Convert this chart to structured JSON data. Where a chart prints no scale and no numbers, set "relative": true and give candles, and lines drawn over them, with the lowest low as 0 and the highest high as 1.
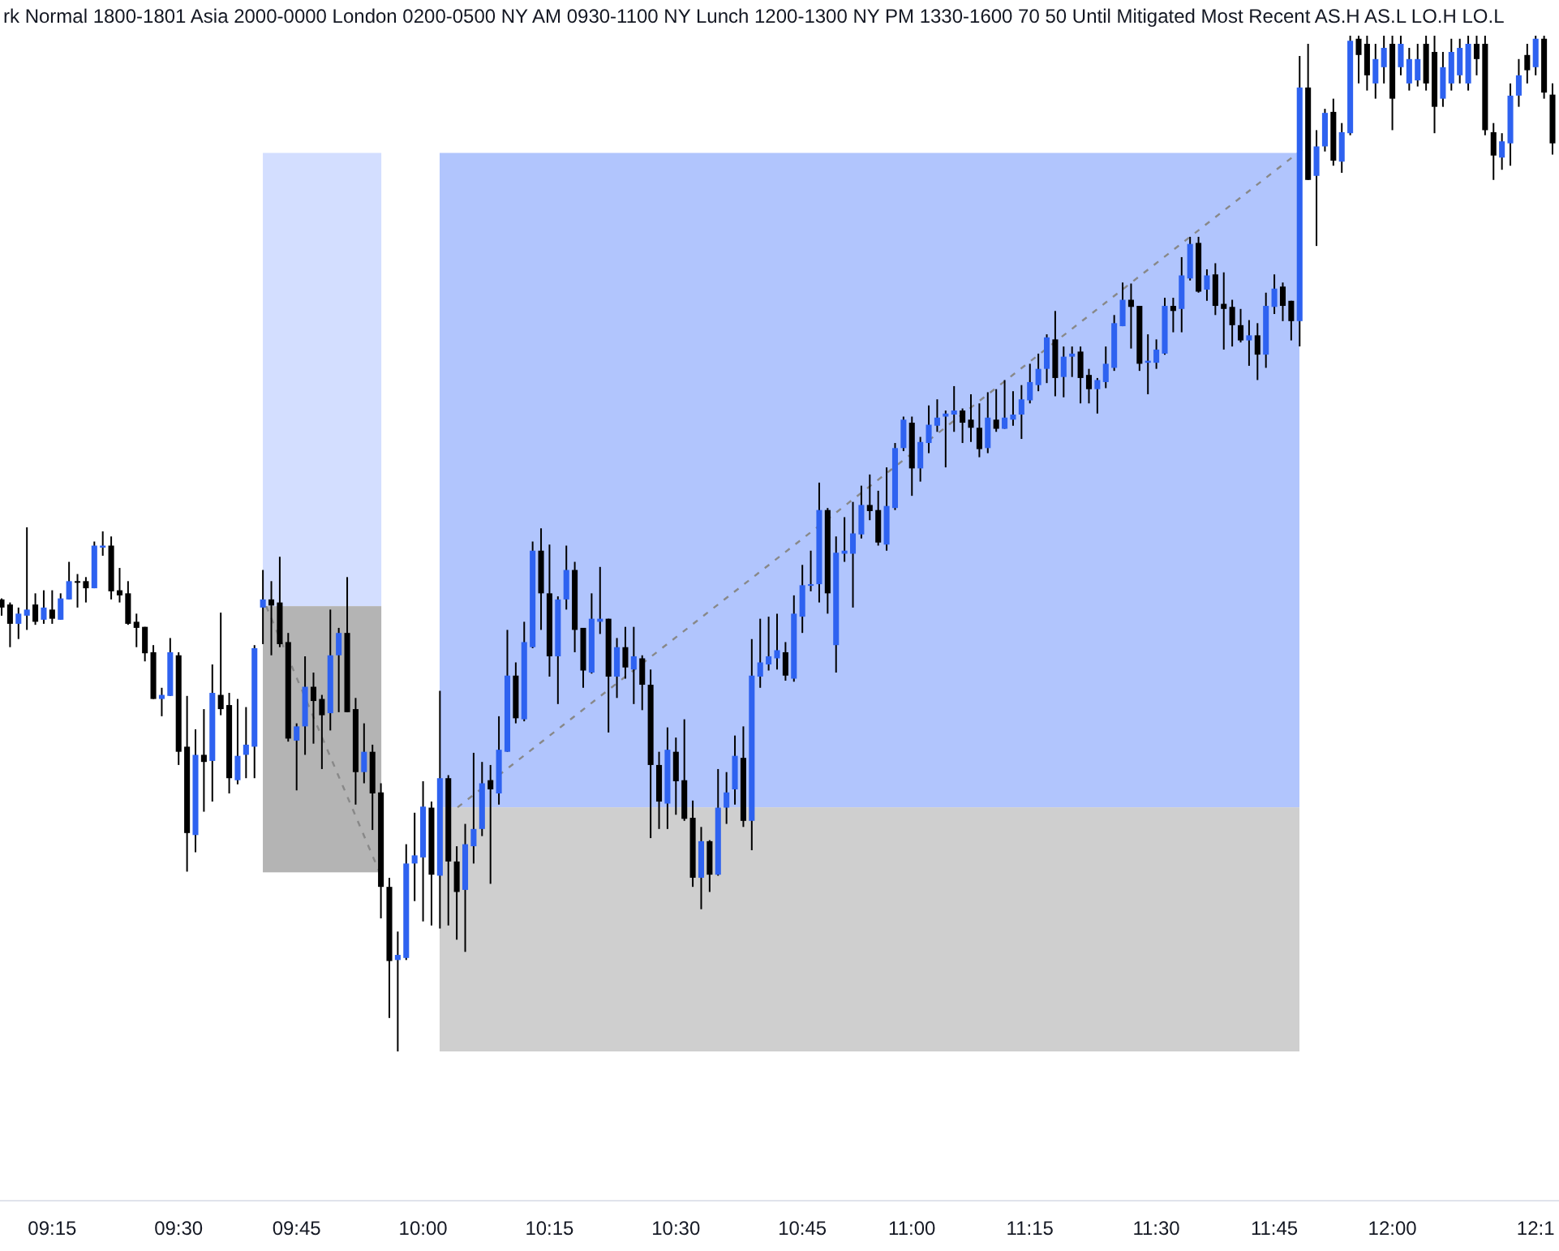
{
  "chart_data": {
    "type": "candlestick",
    "relative": true,
    "colors": [
      "#000000",
      "#000000",
      "#2e62f0",
      "#2e62f0",
      "#000000",
      "#2e62f0",
      "#000000",
      "#2e62f0",
      "#2e62f0",
      "#000000",
      "#000000",
      "#2e62f0",
      "#2e62f0",
      "#000000",
      "#000000",
      "#000000",
      "#000000",
      "#000000",
      "#000000",
      "#2e62f0",
      "#2e62f0",
      "#000000",
      "#000000",
      "#2e62f0",
      "#000000",
      "#2e62f0",
      "#000000",
      "#000000",
      "#2e62f0",
      "#2e62f0",
      "#2e62f0",
      "#2e62f0",
      "#000000",
      "#000000",
      "#000000",
      "#2e62f0",
      "#2e62f0",
      "#000000",
      "#000000",
      "#2e62f0",
      "#2e62f0",
      "#000000",
      "#000000",
      "#2e62f0",
      "#000000",
      "#000000",
      "#000000",
      "#2e62f0",
      "#2e62f0",
      "#2e62f0",
      "#2e62f0",
      "#000000",
      "#2e62f0",
      "#000000",
      "#000000",
      "#2e62f0",
      "#2e62f0",
      "#2e62f0",
      "#000000",
      "#2e62f0",
      "#2e62f0",
      "#000000",
      "#2e62f0",
      "#2e62f0",
      "#000000",
      "#000000",
      "#2e62f0",
      "#2e62f0",
      "#000000",
      "#000000",
      "#2e62f0",
      "#2e62f0",
      "#000000",
      "#2e62f0",
      "#000000",
      "#2e62f0",
      "#000000",
      "#000000",
      "#000000",
      "#2e62f0",
      "#000000",
      "#000000",
      "#000000",
      "#2e62f0",
      "#000000",
      "#2e62f0",
      "#2e62f0",
      "#2e62f0",
      "#000000",
      "#2e62f0",
      "#2e62f0",
      "#2e62f0",
      "#2e62f0",
      "#000000",
      "#2e62f0",
      "#2e62f0",
      "#2e62f0",
      "#2e62f0",
      "#000000",
      "#2e62f0",
      "#2e62f0",
      "#2e62f0",
      "#2e62f0",
      "#000000",
      "#000000",
      "#2e62f0",
      "#2e62f0",
      "#2e62f0",
      "#000000",
      "#2e62f0",
      "#2e62f0",
      "#2e62f0",
      "#2e62f0",
      "#2e62f0",
      "#000000",
      "#000000",
      "#000000",
      "#2e62f0",
      "#000000",
      "#2e62f0",
      "#2e62f0",
      "#2e62f0",
      "#2e62f0",
      "#2e62f0",
      "#2e62f0",
      "#000000",
      "#2e62f0",
      "#2e62f0",
      "#000000",
      "#000000",
      "#2e62f0",
      "#2e62f0",
      "#2e62f0",
      "#2e62f0",
      "#000000",
      "#000000",
      "#2e62f0",
      "#2e62f0",
      "#2e62f0",
      "#000000",
      "#2e62f0",
      "#2e62f0",
      "#000000",
      "#2e62f0",
      "#000000",
      "#000000",
      "#000000",
      "#000000",
      "#2e62f0",
      "#000000",
      "#2e62f0",
      "#2e62f0",
      "#000000",
      "#000000",
      "#2e62f0",
      "#000000",
      "#2e62f0",
      "#2e62f0",
      "#000000",
      "#2e62f0",
      "#2e62f0",
      "#000000",
      "#000000",
      "#2e62f0",
      "#2e62f0",
      "#000000",
      "#2e62f0",
      "#2e62f0",
      "#2e62f0",
      "#000000",
      "#000000",
      "#2e62f0",
      "#2e62f0",
      "#2e62f0",
      "#2e62f0",
      "#000000",
      "#000000",
      "#000000",
      "#2e62f0",
      "#2e62f0",
      "#2e62f0",
      "#000000",
      "#2e62f0",
      "#000000",
      "#000000"
    ],
    "annotations": [
      "rk Normal 1800-1801 Asia 2000-0000 London 0200-0500 NY AM 0930-1100 NY Lunch 1200-1300 NY PM 1330-1600 70 50 Until Mitigated Most Recent AS.H AS.L LO.H LO.L"
    ],
    "categories": [
      null,
      null,
      null,
      null,
      null,
      null,
      "09:15",
      null,
      null,
      null,
      null,
      null,
      null,
      null,
      null,
      null,
      null,
      null,
      null,
      null,
      null,
      "09:30",
      null,
      null,
      null,
      null,
      null,
      null,
      null,
      null,
      null,
      null,
      null,
      null,
      null,
      "09:45",
      null,
      null,
      null,
      null,
      null,
      null,
      null,
      null,
      null,
      null,
      null,
      null,
      null,
      null,
      "10:00",
      null,
      null,
      null,
      null,
      null,
      null,
      null,
      null,
      null,
      null,
      null,
      null,
      null,
      null,
      "10:15",
      null,
      null,
      null,
      null,
      null,
      null,
      null,
      null,
      null,
      null,
      null,
      null,
      null,
      null,
      "10:30",
      null,
      null,
      null,
      null,
      null,
      null,
      null,
      null,
      null,
      null,
      null,
      null,
      null,
      null,
      "10:45",
      null,
      null,
      null,
      null,
      null,
      null,
      null,
      null,
      null,
      null,
      null,
      null,
      "11:00",
      null,
      null,
      null,
      null,
      null,
      null,
      null,
      null,
      null,
      null,
      null,
      null,
      null,
      "11:15",
      null,
      null,
      null,
      null,
      null,
      null,
      null,
      null,
      null,
      null,
      null,
      null,
      null,
      null,
      "11:30",
      null,
      null,
      null,
      null,
      null,
      null,
      null,
      null,
      null,
      null,
      null,
      null,
      null,
      "11:45",
      null,
      null,
      null,
      null,
      null,
      null,
      null,
      null,
      null,
      null,
      null,
      null,
      null,
      "12:00",
      null,
      null,
      null,
      null,
      null,
      null,
      null,
      null,
      null,
      null,
      null,
      null,
      null,
      null,
      null,
      null,
      "12:1",
      null,
      null
    ],
    "ohlc": [
      [
        0.445,
        0.446,
        0.429,
        0.437
      ],
      [
        0.44,
        0.442,
        0.398,
        0.421
      ],
      [
        0.421,
        0.437,
        0.406,
        0.431
      ],
      [
        0.429,
        0.516,
        0.415,
        0.435
      ],
      [
        0.44,
        0.451,
        0.42,
        0.423
      ],
      [
        0.425,
        0.454,
        0.421,
        0.437
      ],
      [
        0.435,
        0.454,
        0.421,
        0.426
      ],
      [
        0.425,
        0.451,
        0.425,
        0.446
      ],
      [
        0.445,
        0.482,
        0.445,
        0.463
      ],
      [
        0.463,
        0.47,
        0.437,
        0.462
      ],
      [
        0.463,
        0.467,
        0.442,
        0.456
      ],
      [
        0.456,
        0.502,
        0.456,
        0.498
      ],
      [
        0.496,
        0.512,
        0.488,
        0.498
      ],
      [
        0.498,
        0.507,
        0.445,
        0.453
      ],
      [
        0.454,
        0.476,
        0.442,
        0.449
      ],
      [
        0.451,
        0.463,
        0.42,
        0.421
      ],
      [
        0.423,
        0.431,
        0.398,
        0.417
      ],
      [
        0.418,
        0.418,
        0.384,
        0.392
      ],
      [
        0.393,
        0.4,
        0.347,
        0.347
      ],
      [
        0.347,
        0.358,
        0.33,
        0.351
      ],
      [
        0.35,
        0.407,
        0.35,
        0.393
      ],
      [
        0.39,
        0.393,
        0.282,
        0.295
      ],
      [
        0.3,
        0.35,
        0.177,
        0.215
      ],
      [
        0.213,
        0.317,
        0.196,
        0.292
      ],
      [
        0.292,
        0.337,
        0.236,
        0.285
      ],
      [
        0.286,
        0.381,
        0.246,
        0.353
      ],
      [
        0.351,
        0.432,
        0.331,
        0.337
      ],
      [
        0.341,
        0.353,
        0.254,
        0.269
      ],
      [
        0.267,
        0.347,
        0.263,
        0.291
      ],
      [
        0.292,
        0.339,
        0.269,
        0.302
      ],
      [
        0.3,
        0.4,
        0.269,
        0.397
      ],
      [
        0.437,
        0.474,
        0.401,
        0.445
      ],
      [
        0.445,
        0.463,
        0.39,
        0.439
      ],
      [
        0.442,
        0.487,
        0.398,
        0.401
      ],
      [
        0.403,
        0.412,
        0.305,
        0.308
      ],
      [
        0.306,
        0.323,
        0.257,
        0.32
      ],
      [
        0.32,
        0.389,
        0.292,
        0.359
      ],
      [
        0.359,
        0.373,
        0.303,
        0.345
      ],
      [
        0.347,
        0.351,
        0.278,
        0.331
      ],
      [
        0.333,
        0.435,
        0.316,
        0.39
      ],
      [
        0.39,
        0.417,
        0.334,
        0.412
      ],
      [
        0.412,
        0.467,
        0.334,
        0.334
      ],
      [
        0.337,
        0.348,
        0.243,
        0.275
      ],
      [
        0.275,
        0.323,
        0.264,
        0.295
      ],
      [
        0.295,
        0.302,
        0.218,
        0.254
      ],
      [
        0.255,
        0.264,
        0.131,
        0.162
      ],
      [
        0.162,
        0.171,
        0.033,
        0.089
      ],
      [
        0.09,
        0.118,
        0,
        0.095
      ],
      [
        0.092,
        0.204,
        0.09,
        0.185
      ],
      [
        0.185,
        0.235,
        0.148,
        0.193
      ],
      [
        0.191,
        0.266,
        0.128,
        0.241
      ],
      [
        0.24,
        0.246,
        0.124,
        0.174
      ],
      [
        0.173,
        0.355,
        0.121,
        0.269
      ],
      [
        0.269,
        0.272,
        0.124,
        0.187
      ],
      [
        0.187,
        0.202,
        0.11,
        0.157
      ],
      [
        0.159,
        0.224,
        0.098,
        0.204
      ],
      [
        0.202,
        0.294,
        0.185,
        0.219
      ],
      [
        0.219,
        0.285,
        0.212,
        0.264
      ],
      [
        0.267,
        0.282,
        0.165,
        0.258
      ],
      [
        0.254,
        0.33,
        0.243,
        0.297
      ],
      [
        0.295,
        0.415,
        0.295,
        0.37
      ],
      [
        0.37,
        0.383,
        0.323,
        0.328
      ],
      [
        0.327,
        0.423,
        0.325,
        0.403
      ],
      [
        0.398,
        0.502,
        0.397,
        0.493
      ],
      [
        0.493,
        0.515,
        0.415,
        0.451
      ],
      [
        0.451,
        0.499,
        0.369,
        0.389
      ],
      [
        0.389,
        0.448,
        0.342,
        0.445
      ],
      [
        0.445,
        0.498,
        0.435,
        0.474
      ],
      [
        0.474,
        0.482,
        0.393,
        0.415
      ],
      [
        0.417,
        0.417,
        0.358,
        0.375
      ],
      [
        0.373,
        0.451,
        0.372,
        0.426
      ],
      [
        0.423,
        0.477,
        0.411,
        0.426
      ],
      [
        0.426,
        0.426,
        0.314,
        0.369
      ],
      [
        0.369,
        0.407,
        0.348,
        0.398
      ],
      [
        0.398,
        0.418,
        0.367,
        0.378
      ],
      [
        0.376,
        0.418,
        0.342,
        0.389
      ],
      [
        0.387,
        0.39,
        0.336,
        0.361
      ],
      [
        0.361,
        0.376,
        0.21,
        0.282
      ],
      [
        0.282,
        0.295,
        0.219,
        0.246
      ],
      [
        0.244,
        0.319,
        0.219,
        0.297
      ],
      [
        0.295,
        0.309,
        0.233,
        0.266
      ],
      [
        0.267,
        0.327,
        0.227,
        0.229
      ],
      [
        0.23,
        0.247,
        0.162,
        0.171
      ],
      [
        0.171,
        0.221,
        0.14,
        0.207
      ],
      [
        0.207,
        0.208,
        0.157,
        0.174
      ],
      [
        0.174,
        0.278,
        0.173,
        0.24
      ],
      [
        0.24,
        0.275,
        0.224,
        0.255
      ],
      [
        0.258,
        0.311,
        0.243,
        0.291
      ],
      [
        0.289,
        0.32,
        0.221,
        0.227
      ],
      [
        0.227,
        0.406,
        0.198,
        0.37
      ],
      [
        0.369,
        0.426,
        0.358,
        0.383
      ],
      [
        0.381,
        0.428,
        0.375,
        0.389
      ],
      [
        0.387,
        0.431,
        0.376,
        0.395
      ],
      [
        0.393,
        0.403,
        0.365,
        0.37
      ],
      [
        0.367,
        0.449,
        0.364,
        0.431
      ],
      [
        0.428,
        0.479,
        0.412,
        0.459
      ],
      [
        0.459,
        0.493,
        0.453,
        0.46
      ],
      [
        0.46,
        0.56,
        0.442,
        0.533
      ],
      [
        0.533,
        0.535,
        0.431,
        0.451
      ],
      [
        0.4,
        0.507,
        0.373,
        0.491
      ],
      [
        0.49,
        0.526,
        0.482,
        0.493
      ],
      [
        0.49,
        0.541,
        0.437,
        0.51
      ],
      [
        0.509,
        0.557,
        0.505,
        0.538
      ],
      [
        0.538,
        0.568,
        0.523,
        0.532
      ],
      [
        0.533,
        0.552,
        0.498,
        0.501
      ],
      [
        0.499,
        0.575,
        0.493,
        0.537
      ],
      [
        0.535,
        0.599,
        0.533,
        0.594
      ],
      [
        0.594,
        0.625,
        0.591,
        0.622
      ],
      [
        0.619,
        0.625,
        0.547,
        0.574
      ],
      [
        0.574,
        0.605,
        0.561,
        0.6
      ],
      [
        0.599,
        0.636,
        0.589,
        0.617
      ],
      [
        0.616,
        0.642,
        0.61,
        0.624
      ],
      [
        0.625,
        0.631,
        0.575,
        0.628
      ],
      [
        0.627,
        0.655,
        0.61,
        0.631
      ],
      [
        0.631,
        0.633,
        0.599,
        0.619
      ],
      [
        0.622,
        0.647,
        0.6,
        0.614
      ],
      [
        0.614,
        0.638,
        0.585,
        0.593
      ],
      [
        0.594,
        0.649,
        0.589,
        0.624
      ],
      [
        0.622,
        0.652,
        0.61,
        0.613
      ],
      [
        0.613,
        0.661,
        0.613,
        0.624
      ],
      [
        0.622,
        0.65,
        0.616,
        0.627
      ],
      [
        0.627,
        0.656,
        0.603,
        0.642
      ],
      [
        0.641,
        0.677,
        0.638,
        0.659
      ],
      [
        0.656,
        0.687,
        0.65,
        0.672
      ],
      [
        0.672,
        0.706,
        0.658,
        0.703
      ],
      [
        0.701,
        0.729,
        0.645,
        0.663
      ],
      [
        0.664,
        0.694,
        0.644,
        0.684
      ],
      [
        0.684,
        0.694,
        0.664,
        0.687
      ],
      [
        0.689,
        0.694,
        0.638,
        0.663
      ],
      [
        0.666,
        0.672,
        0.638,
        0.652
      ],
      [
        0.652,
        0.663,
        0.628,
        0.661
      ],
      [
        0.659,
        0.694,
        0.653,
        0.677
      ],
      [
        0.673,
        0.725,
        0.67,
        0.717
      ],
      [
        0.714,
        0.757,
        0.714,
        0.74
      ],
      [
        0.74,
        0.756,
        0.692,
        0.733
      ],
      [
        0.734,
        0.734,
        0.67,
        0.677
      ],
      [
        0.678,
        0.706,
        0.647,
        0.68
      ],
      [
        0.678,
        0.701,
        0.672,
        0.691
      ],
      [
        0.687,
        0.742,
        0.686,
        0.734
      ],
      [
        0.734,
        0.742,
        0.708,
        0.729
      ],
      [
        0.731,
        0.782,
        0.708,
        0.764
      ],
      [
        0.761,
        0.802,
        0.759,
        0.795
      ],
      [
        0.796,
        0.802,
        0.747,
        0.748
      ],
      [
        0.75,
        0.77,
        0.739,
        0.764
      ],
      [
        0.765,
        0.776,
        0.725,
        0.734
      ],
      [
        0.736,
        0.767,
        0.691,
        0.731
      ],
      [
        0.733,
        0.74,
        0.694,
        0.715
      ],
      [
        0.715,
        0.731,
        0.698,
        0.7
      ],
      [
        0.7,
        0.72,
        0.675,
        0.705
      ],
      [
        0.705,
        0.717,
        0.661,
        0.686
      ],
      [
        0.686,
        0.747,
        0.673,
        0.734
      ],
      [
        0.733,
        0.765,
        0.726,
        0.751
      ],
      [
        0.753,
        0.757,
        0.719,
        0.734
      ],
      [
        0.739,
        0.739,
        0.7,
        0.719
      ],
      [
        0.719,
        0.98,
        0.694,
        0.949
      ],
      [
        0.949,
        0.992,
        0.858,
        0.858
      ],
      [
        0.862,
        0.907,
        0.793,
        0.891
      ],
      [
        0.891,
        0.928,
        0.886,
        0.924
      ],
      [
        0.925,
        0.938,
        0.872,
        0.877
      ],
      [
        0.876,
        0.914,
        0.865,
        0.905
      ],
      [
        0.904,
        1,
        0.902,
        0.995
      ],
      [
        0.997,
        1,
        0.953,
        0.981
      ],
      [
        0.992,
        1,
        0.946,
        0.961
      ],
      [
        0.953,
        0.992,
        0.938,
        0.977
      ],
      [
        0.969,
        1,
        0.953,
        0.988
      ],
      [
        0.992,
        1,
        0.907,
        0.938
      ],
      [
        0.969,
        1,
        0.961,
        0.992
      ],
      [
        0.953,
        0.988,
        0.946,
        0.977
      ],
      [
        0.956,
        0.992,
        0.95,
        0.977
      ],
      [
        0.992,
        1,
        0.946,
        0.953
      ],
      [
        0.984,
        1,
        0.904,
        0.93
      ],
      [
        0.938,
        0.984,
        0.93,
        0.969
      ],
      [
        0.953,
        0.997,
        0.946,
        0.984
      ],
      [
        0.961,
        0.997,
        0.953,
        0.988
      ],
      [
        0.953,
        1,
        0.946,
        0.992
      ],
      [
        0.992,
        1,
        0.961,
        0.977
      ],
      [
        0.992,
        1,
        0.902,
        0.907
      ],
      [
        0.905,
        0.914,
        0.858,
        0.882
      ],
      [
        0.88,
        0.904,
        0.868,
        0.896
      ],
      [
        0.894,
        0.953,
        0.872,
        0.941
      ],
      [
        0.941,
        0.977,
        0.93,
        0.961
      ],
      [
        0.981,
        0.992,
        0.953,
        0.966
      ],
      [
        0.969,
        1,
        0.961,
        0.997
      ],
      [
        0.997,
        1,
        0.938,
        0.944
      ],
      [
        0.942,
        0.953,
        0.883,
        0.894
      ]
    ]
  }
}
